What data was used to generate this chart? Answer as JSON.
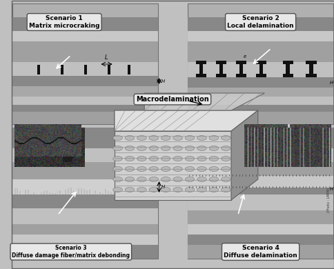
{
  "fig_width": 4.85,
  "fig_height": 3.9,
  "dpi": 100,
  "bg_color": "#c8c8c8",
  "panel_bg_light": "#b8b8b8",
  "panel_bg_mid": "#989898",
  "panel_bg_dark": "#686868",
  "layer_light": "#d0d0d0",
  "layer_mid": "#a0a0a0",
  "layer_dark": "#606060",
  "scenario1_title": "Scenario 1\nMatrix microcraking",
  "scenario2_title": "Scenario 2\nLocal delamination",
  "scenario3_title": "Scenario 3\nDiffuse damage fiber/matrix debonding",
  "scenario4_title": "Scenario 4\nDiffuse delamination",
  "macrodel_label": "Macrodelamination",
  "photo_label": "(Photo : LMPM)"
}
